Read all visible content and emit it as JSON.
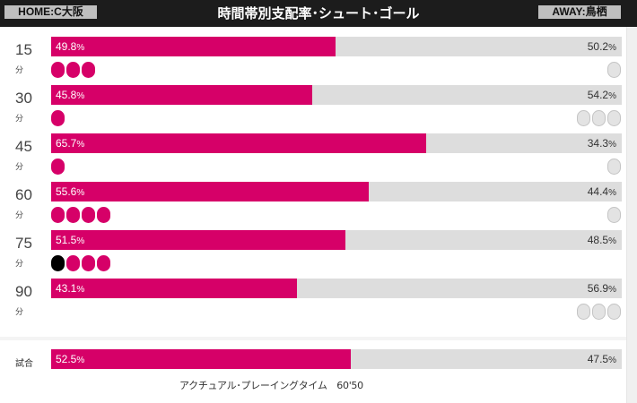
{
  "header": {
    "home_tag": "HOME:C大阪",
    "title": "時間帯別支配率･シュート･ゴール",
    "away_tag": "AWAY:鳥栖"
  },
  "unit_label": "分",
  "percent_unit": "%",
  "rows": [
    {
      "minute": "15",
      "home_pct": 49.8,
      "home_label": "49.8",
      "away_label": "50.2",
      "home_shots": 3,
      "home_goals": 0,
      "away_shots": 1
    },
    {
      "minute": "30",
      "home_pct": 45.8,
      "home_label": "45.8",
      "away_label": "54.2",
      "home_shots": 1,
      "home_goals": 0,
      "away_shots": 3
    },
    {
      "minute": "45",
      "home_pct": 65.7,
      "home_label": "65.7",
      "away_label": "34.3",
      "home_shots": 1,
      "home_goals": 0,
      "away_shots": 1
    },
    {
      "minute": "60",
      "home_pct": 55.6,
      "home_label": "55.6",
      "away_label": "44.4",
      "home_shots": 4,
      "home_goals": 0,
      "away_shots": 1
    },
    {
      "minute": "75",
      "home_pct": 51.5,
      "home_label": "51.5",
      "away_label": "48.5",
      "home_shots": 3,
      "home_goals": 1,
      "away_shots": 0
    },
    {
      "minute": "90",
      "home_pct": 43.1,
      "home_label": "43.1",
      "away_label": "56.9",
      "home_shots": 0,
      "home_goals": 0,
      "away_shots": 3
    }
  ],
  "match": {
    "label": "試合",
    "home_pct": 52.5,
    "home_label": "52.5",
    "away_label": "47.5",
    "actual_playing_time": "アクチュアル･プレーイングタイム　60'50"
  },
  "colors": {
    "home": "#d60068",
    "away": "#dddddd",
    "goal": "#000000",
    "header_bg": "#1c1c1c"
  }
}
